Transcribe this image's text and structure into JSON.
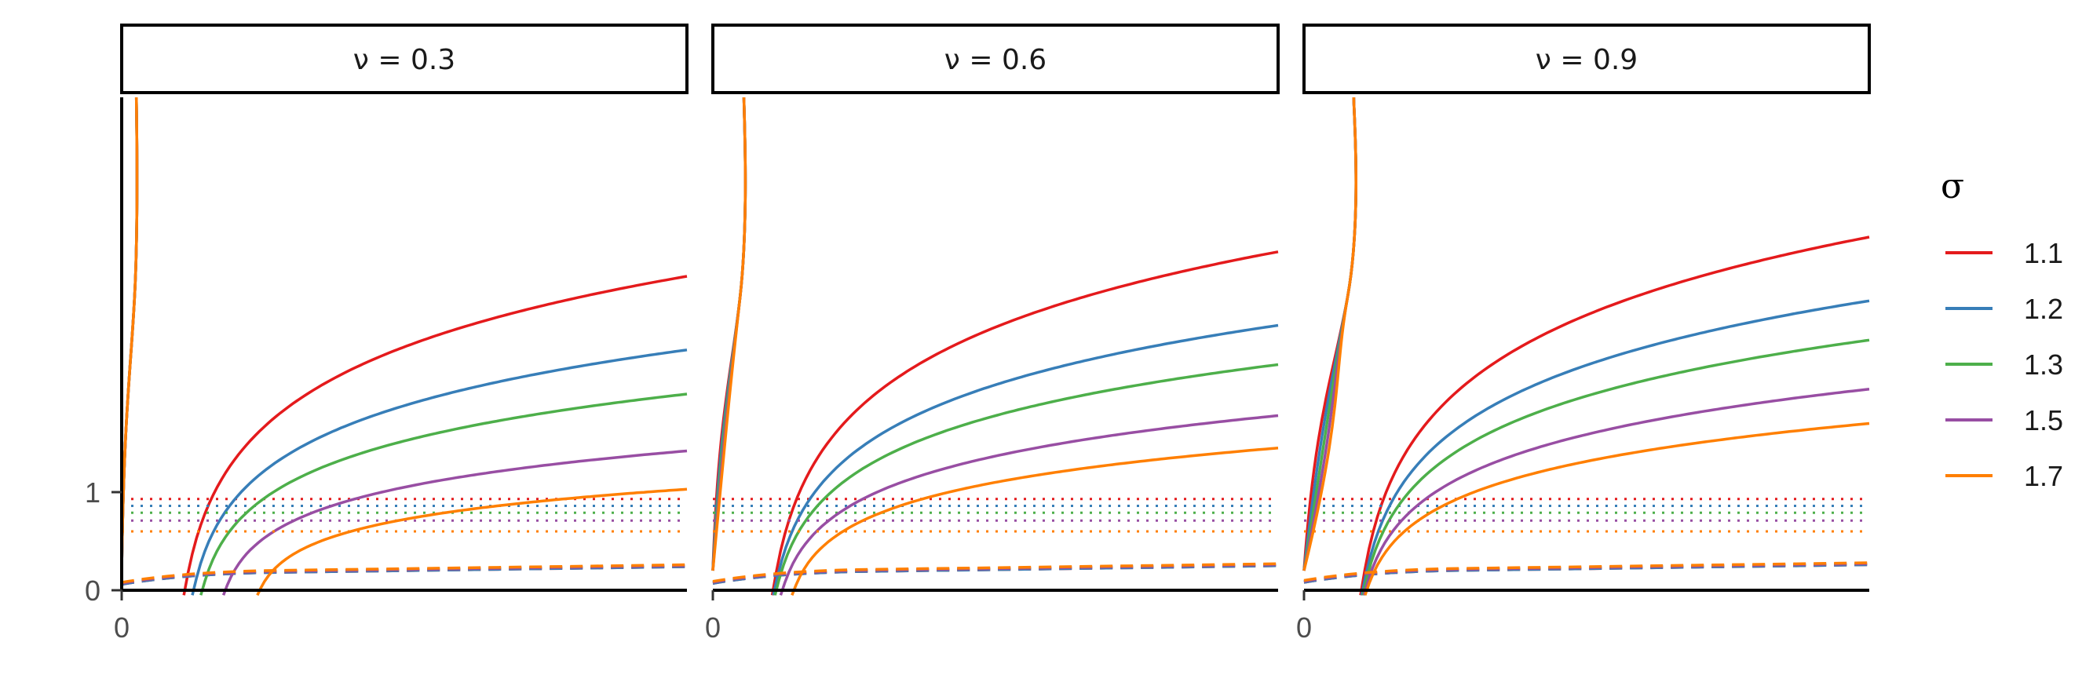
{
  "chart_data": {
    "type": "line",
    "facets": [
      {
        "strip": "ν = 0.3",
        "nu": 0.3
      },
      {
        "strip": "ν = 0.6",
        "nu": 0.6
      },
      {
        "strip": "ν = 0.9",
        "nu": 0.9
      }
    ],
    "x_ticks": [
      "0",
      "0",
      "0"
    ],
    "y_ticks": [
      {
        "value": 0,
        "label": "0"
      },
      {
        "value": 1,
        "label": "1"
      }
    ],
    "ylim": [
      0,
      5.0
    ],
    "legend": {
      "title": "σ",
      "position": "right",
      "entries": [
        {
          "label": "1.1",
          "color": "#e41a1c"
        },
        {
          "label": "1.2",
          "color": "#377eb8"
        },
        {
          "label": "1.3",
          "color": "#4daf4a"
        },
        {
          "label": "1.5",
          "color": "#984ea3"
        },
        {
          "label": "1.7",
          "color": "#ff7f00"
        }
      ]
    },
    "series": [
      {
        "name": "1.1",
        "color": "#e41a1c",
        "dotted_level": [
          0.93,
          0.93,
          0.93
        ],
        "dashed_level": [
          0.18,
          0.19,
          0.2
        ],
        "solid_end": [
          3.2,
          3.45,
          3.6
        ]
      },
      {
        "name": "1.2",
        "color": "#377eb8",
        "dotted_level": [
          0.86,
          0.86,
          0.86
        ],
        "dashed_level": [
          0.18,
          0.19,
          0.2
        ],
        "solid_end": [
          2.45,
          2.7,
          2.95
        ]
      },
      {
        "name": "1.3",
        "color": "#4daf4a",
        "dotted_level": [
          0.79,
          0.79,
          0.79
        ],
        "dashed_level": [
          0.19,
          0.2,
          0.21
        ],
        "solid_end": [
          2.0,
          2.3,
          2.55
        ]
      },
      {
        "name": "1.5",
        "color": "#984ea3",
        "dotted_level": [
          0.71,
          0.71,
          0.71
        ],
        "dashed_level": [
          0.19,
          0.2,
          0.21
        ],
        "solid_end": [
          1.42,
          1.78,
          2.05
        ]
      },
      {
        "name": "1.7",
        "color": "#ff7f00",
        "dotted_level": [
          0.6,
          0.6,
          0.6
        ],
        "dashed_level": [
          0.2,
          0.21,
          0.22
        ],
        "solid_end": [
          1.03,
          1.45,
          1.7
        ]
      }
    ]
  }
}
